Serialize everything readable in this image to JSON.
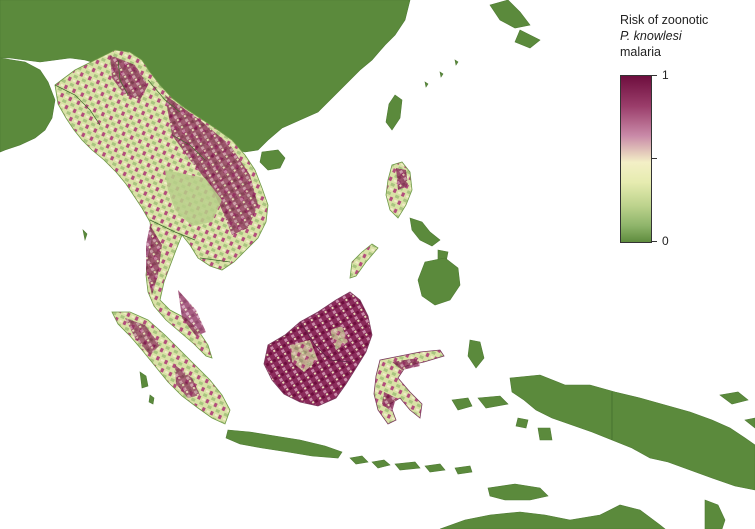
{
  "legend": {
    "title_line1": "Risk of zoonotic",
    "title_line2": "P. knowlesi",
    "title_line3": "malaria",
    "max_label": "1",
    "min_label": "0",
    "scale": {
      "min": 0,
      "max": 1
    },
    "colors": {
      "high": "#6e0e3e",
      "mid": "#f3efc6",
      "low": "#5f8c3e"
    }
  },
  "map": {
    "land_color": "#5b8a3c",
    "risk_colors": [
      "#5f8c3e",
      "#8fb56b",
      "#bdd38d",
      "#e6ecb0",
      "#f3efc6",
      "#c98aa8",
      "#9a3d6a",
      "#6e0e3e"
    ]
  }
}
